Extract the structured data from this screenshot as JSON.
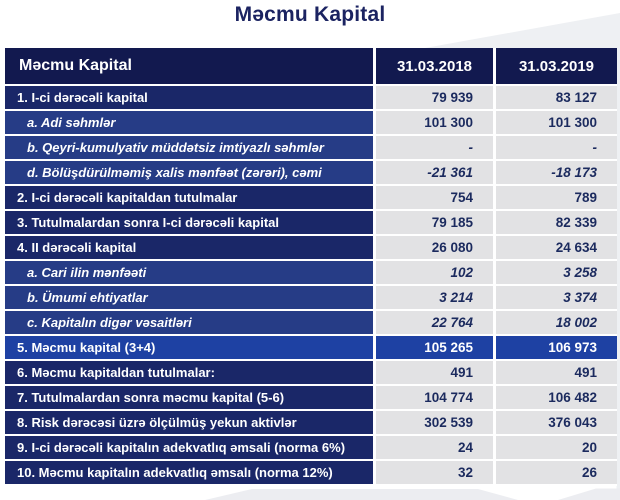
{
  "page_title": "Məcmu Kapital",
  "colors": {
    "header_bg": "#12194f",
    "section_row_bg": "#1a2768",
    "sub_row_bg": "#263c86",
    "total_row_bg": "#1e41a3",
    "value_cell_bg": "#e2e2e4",
    "value_text": "#1b2a5e",
    "header_text": "#ffffff",
    "title_text": "#1b2361",
    "decor_gray": "#eef0f3"
  },
  "table": {
    "header": {
      "label": "Məcmu Kapital",
      "col_2018": "31.03.2018",
      "col_2019": "31.03.2019"
    },
    "rows": [
      {
        "label": "1. I-ci dərəcəli kapital",
        "v2018": "79 939",
        "v2019": "83 127",
        "type": "section",
        "value_style": "normal"
      },
      {
        "label": "a. Adi səhmlər",
        "v2018": "101 300",
        "v2019": "101 300",
        "type": "sub",
        "value_style": "normal"
      },
      {
        "label": "b. Qeyri-kumulyativ müddətsiz imtiyazlı səhmlər",
        "v2018": "-",
        "v2019": "-",
        "type": "sub",
        "value_style": "italic"
      },
      {
        "label": "d. Bölüşdürülməmiş xalis mənfəət (zərəri), cəmi",
        "v2018": "-21 361",
        "v2019": "-18 173",
        "type": "sub",
        "value_style": "italic"
      },
      {
        "label": "2. I-ci dərəcəli kapitaldan tutulmalar",
        "v2018": "754",
        "v2019": "789",
        "type": "section",
        "value_style": "normal"
      },
      {
        "label": "3. Tutulmalardan sonra I-ci dərəcəli kapital",
        "v2018": "79 185",
        "v2019": "82 339",
        "type": "section",
        "value_style": "normal"
      },
      {
        "label": "4. II dərəcəli kapital",
        "v2018": "26 080",
        "v2019": "24 634",
        "type": "section",
        "value_style": "normal"
      },
      {
        "label": "a. Cari ilin mənfəəti",
        "v2018": "102",
        "v2019": "3 258",
        "type": "sub",
        "value_style": "italic"
      },
      {
        "label": "b. Ümumi ehtiyatlar",
        "v2018": "3 214",
        "v2019": "3 374",
        "type": "sub",
        "value_style": "italic"
      },
      {
        "label": "c. Kapitalın digər vəsaitləri",
        "v2018": "22 764",
        "v2019": "18 002",
        "type": "sub",
        "value_style": "italic"
      },
      {
        "label": "5. Məcmu kapital (3+4)",
        "v2018": "105 265",
        "v2019": "106 973",
        "type": "total",
        "value_style": "normal"
      },
      {
        "label": "6. Məcmu kapitaldan tutulmalar:",
        "v2018": "491",
        "v2019": "491",
        "type": "section",
        "value_style": "normal"
      },
      {
        "label": "7. Tutulmalardan sonra məcmu kapital (5-6)",
        "v2018": "104 774",
        "v2019": "106 482",
        "type": "section",
        "value_style": "normal"
      },
      {
        "label": "8. Risk dərəcəsi üzrə ölçülmüş yekun aktivlər",
        "v2018": "302 539",
        "v2019": "376 043",
        "type": "section",
        "value_style": "normal"
      },
      {
        "label": "9. I-ci dərəcəli kapitalın adekvatlıq əmsali (norma 6%)",
        "v2018": "24",
        "v2019": "20",
        "type": "section",
        "value_style": "normal"
      },
      {
        "label": "10. Məcmu kapitalın adekvatlıq əmsalı (norma 12%)",
        "v2018": "32",
        "v2019": "26",
        "type": "section",
        "value_style": "normal"
      }
    ]
  },
  "chart_data": {
    "type": "table",
    "title": "Məcmu Kapital",
    "columns": [
      "Məcmu Kapital",
      "31.03.2018",
      "31.03.2019"
    ],
    "rows": [
      [
        "1. I-ci dərəcəli kapital",
        79939,
        83127
      ],
      [
        "a. Adi səhmlər",
        101300,
        101300
      ],
      [
        "b. Qeyri-kumulyativ müddətsiz imtiyazlı səhmlər",
        null,
        null
      ],
      [
        "d. Bölüşdürülməmiş xalis mənfəət (zərəri), cəmi",
        -21361,
        -18173
      ],
      [
        "2. I-ci dərəcəli kapitaldan tutulmalar",
        754,
        789
      ],
      [
        "3. Tutulmalardan sonra I-ci dərəcəli kapital",
        79185,
        82339
      ],
      [
        "4. II dərəcəli kapital",
        26080,
        24634
      ],
      [
        "a. Cari ilin mənfəəti",
        102,
        3258
      ],
      [
        "b. Ümumi ehtiyatlar",
        3214,
        3374
      ],
      [
        "c. Kapitalın digər vəsaitləri",
        22764,
        18002
      ],
      [
        "5. Məcmu kapital (3+4)",
        105265,
        106973
      ],
      [
        "6. Məcmu kapitaldan tutulmalar:",
        491,
        491
      ],
      [
        "7. Tutulmalardan sonra məcmu kapital (5-6)",
        104774,
        106482
      ],
      [
        "8. Risk dərəcəsi üzrə ölçülmüş yekun aktivlər",
        302539,
        376043
      ],
      [
        "9. I-ci dərəcəli kapitalın adekvatlıq əmsali (norma 6%)",
        24,
        20
      ],
      [
        "10. Məcmu kapitalın adekvatlıq əmsalı (norma 12%)",
        32,
        26
      ]
    ]
  }
}
